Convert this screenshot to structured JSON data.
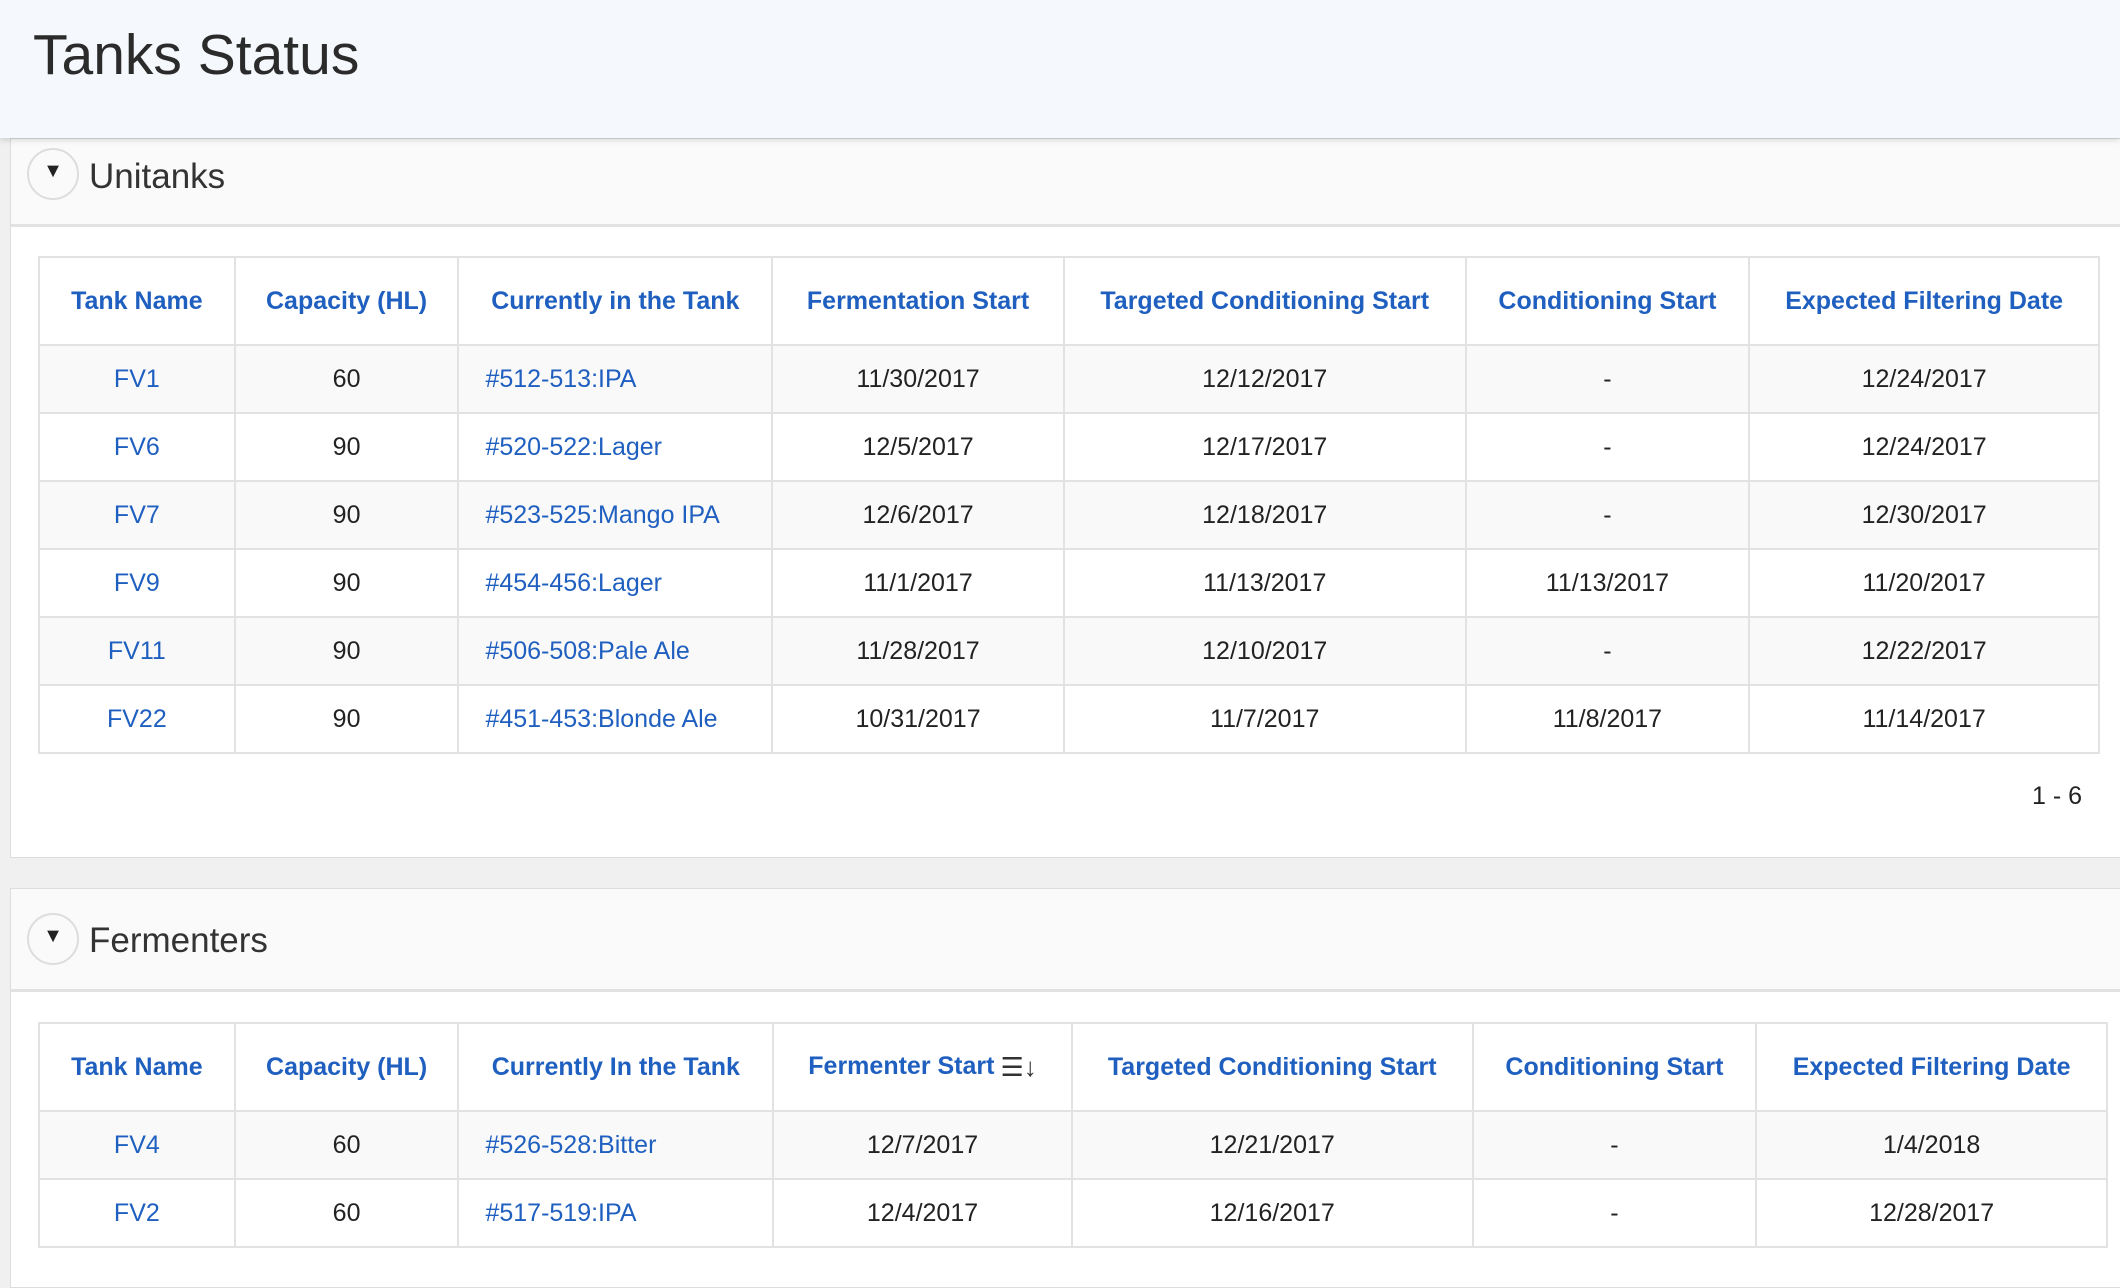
{
  "page_title": "Tanks Status",
  "unitanks": {
    "title": "Unitanks",
    "columns": [
      "Tank Name",
      "Capacity (HL)",
      "Currently in the Tank",
      "Fermentation Start",
      "Targeted Conditioning Start",
      "Conditioning Start",
      "Expected Filtering Date"
    ],
    "rows": [
      [
        "FV1",
        "60",
        "#512-513:IPA",
        "11/30/2017",
        "12/12/2017",
        "-",
        "12/24/2017"
      ],
      [
        "FV6",
        "90",
        "#520-522:Lager",
        "12/5/2017",
        "12/17/2017",
        "-",
        "12/24/2017"
      ],
      [
        "FV7",
        "90",
        "#523-525:Mango IPA",
        "12/6/2017",
        "12/18/2017",
        "-",
        "12/30/2017"
      ],
      [
        "FV9",
        "90",
        "#454-456:Lager",
        "11/1/2017",
        "11/13/2017",
        "11/13/2017",
        "11/20/2017"
      ],
      [
        "FV11",
        "90",
        "#506-508:Pale Ale",
        "11/28/2017",
        "12/10/2017",
        "-",
        "12/22/2017"
      ],
      [
        "FV22",
        "90",
        "#451-453:Blonde Ale",
        "10/31/2017",
        "11/7/2017",
        "11/8/2017",
        "11/14/2017"
      ]
    ],
    "pagination": "1 - 6"
  },
  "fermenters": {
    "title": "Fermenters",
    "columns": [
      "Tank Name",
      "Capacity (HL)",
      "Currently In the Tank",
      "Fermenter Start",
      "Targeted Conditioning Start",
      "Conditioning Start",
      "Expected Filtering Date"
    ],
    "sorted_column_icon": "sort-descending-icon",
    "rows": [
      [
        "FV4",
        "60",
        "#526-528:Bitter",
        "12/7/2017",
        "12/21/2017",
        "-",
        "1/4/2018"
      ],
      [
        "FV2",
        "60",
        "#517-519:IPA",
        "12/4/2017",
        "12/16/2017",
        "-",
        "12/28/2017"
      ]
    ]
  },
  "colors": {
    "link": "#1f5fbf",
    "header_bg": "#f5f8fc"
  }
}
